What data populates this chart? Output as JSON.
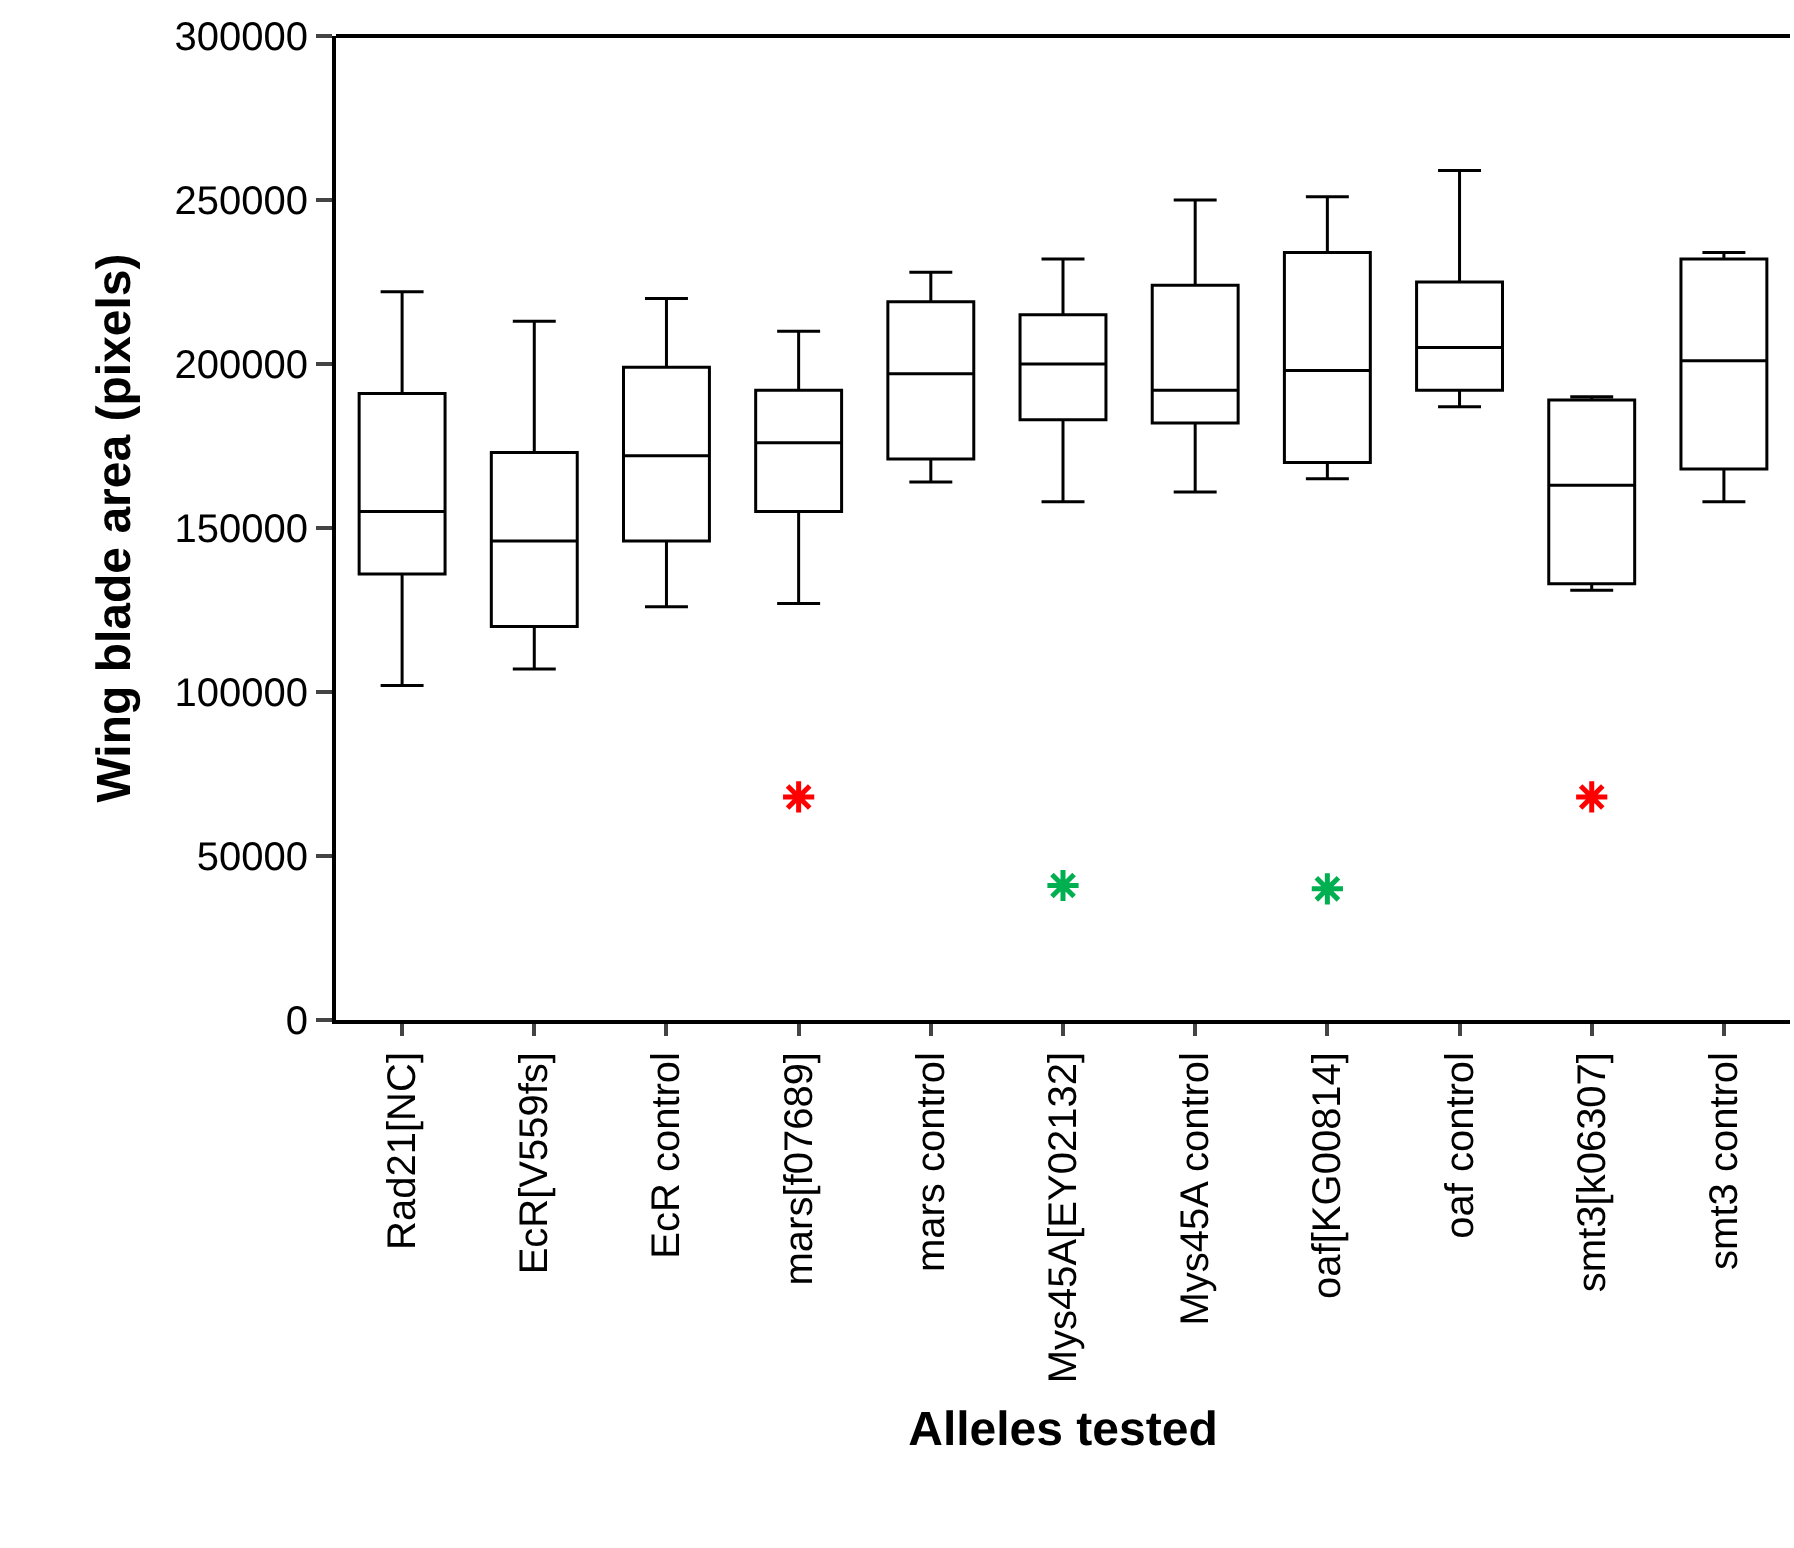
{
  "chart_data": {
    "type": "box",
    "xlabel": "Alleles tested",
    "ylabel": "Wing blade area (pixels)",
    "categories": [
      "Rad21[NC]",
      "EcR[V559fs]",
      "EcR control",
      "mars[f07689]",
      "mars control",
      "Mys45A[EY02132]",
      "Mys45A control",
      "oaf[KG00814]",
      "oaf control",
      "smt3[k06307]",
      "smt3 control"
    ],
    "ylim": [
      0,
      300000
    ],
    "yticks": [
      0,
      50000,
      100000,
      150000,
      200000,
      250000,
      300000
    ],
    "boxes": [
      {
        "low": 102000,
        "q1": 136000,
        "median": 155000,
        "q3": 191000,
        "high": 222000
      },
      {
        "low": 107000,
        "q1": 120000,
        "median": 146000,
        "q3": 173000,
        "high": 213000
      },
      {
        "low": 126000,
        "q1": 146000,
        "median": 172000,
        "q3": 199000,
        "high": 220000
      },
      {
        "low": 127000,
        "q1": 155000,
        "median": 176000,
        "q3": 192000,
        "high": 210000
      },
      {
        "low": 164000,
        "q1": 171000,
        "median": 197000,
        "q3": 219000,
        "high": 228000
      },
      {
        "low": 158000,
        "q1": 183000,
        "median": 200000,
        "q3": 215000,
        "high": 232000
      },
      {
        "low": 161000,
        "q1": 182000,
        "median": 192000,
        "q3": 224000,
        "high": 250000
      },
      {
        "low": 165000,
        "q1": 170000,
        "median": 198000,
        "q3": 234000,
        "high": 251000
      },
      {
        "low": 187000,
        "q1": 192000,
        "median": 205000,
        "q3": 225000,
        "high": 259000
      },
      {
        "low": 131000,
        "q1": 133000,
        "median": 163000,
        "q3": 189000,
        "high": 190000
      },
      {
        "low": 158000,
        "q1": 168000,
        "median": 201000,
        "q3": 232000,
        "high": 234000
      }
    ],
    "series": [
      {
        "type": "scatter",
        "color": "#ff0000",
        "marker": "cross",
        "x": [
          "mars[f07689]",
          "smt3[k06307]"
        ],
        "values": [
          68000,
          68000
        ]
      },
      {
        "type": "scatter",
        "color": "#00b050",
        "marker": "cross",
        "x": [
          "Mys45A[EY02132]",
          "oaf[KG00814]"
        ],
        "values": [
          41000,
          40000
        ]
      }
    ]
  }
}
